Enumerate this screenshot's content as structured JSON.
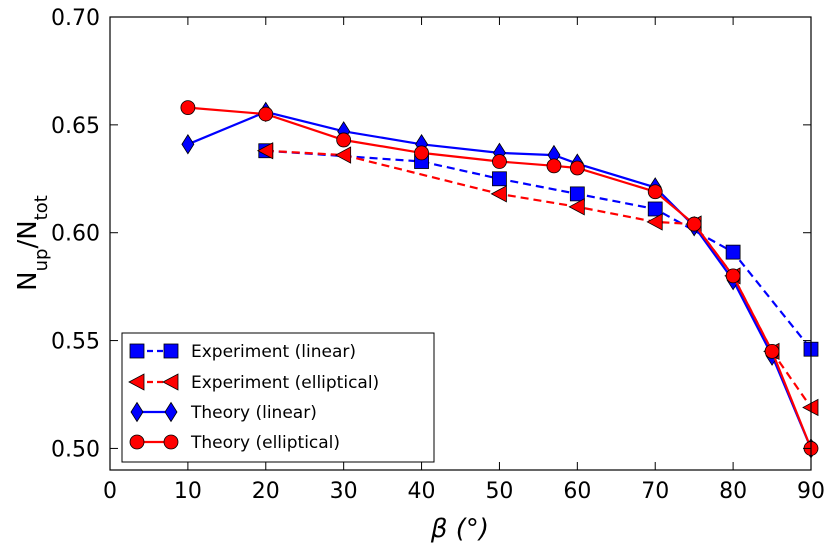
{
  "chart_data": {
    "type": "line",
    "title": "",
    "xlabel": "β (°)",
    "ylabel": "N_up/N_tot",
    "ylabel_main": "N",
    "ylabel_sub1": "up",
    "ylabel_slash": "/N",
    "ylabel_sub2": "tot",
    "xlim": [
      0,
      90
    ],
    "ylim": [
      0.49,
      0.7
    ],
    "xticks": [
      0,
      10,
      20,
      30,
      40,
      50,
      60,
      70,
      80,
      90
    ],
    "xtick_labels": [
      "0",
      "10",
      "20",
      "30",
      "40",
      "50",
      "60",
      "70",
      "80",
      "90"
    ],
    "yticks": [
      0.5,
      0.55,
      0.6,
      0.65,
      0.7
    ],
    "ytick_labels": [
      "0.50",
      "0.55",
      "0.60",
      "0.65",
      "0.70"
    ],
    "grid": false,
    "legend_position": "bottom-left",
    "series": [
      {
        "name": "Experiment (linear)",
        "color": "#0000ff",
        "line_style": "dashed",
        "marker": "square",
        "x": [
          20,
          40,
          50,
          60,
          70,
          80,
          90
        ],
        "y": [
          0.638,
          0.633,
          0.625,
          0.618,
          0.611,
          0.591,
          0.546
        ]
      },
      {
        "name": "Experiment (elliptical)",
        "color": "#ff0000",
        "line_style": "dashed",
        "marker": "triangle-left",
        "x": [
          20,
          30,
          50,
          60,
          70,
          75,
          80,
          85,
          90
        ],
        "y": [
          0.638,
          0.636,
          0.618,
          0.612,
          0.605,
          0.604,
          0.58,
          0.545,
          0.519
        ]
      },
      {
        "name": "Theory (linear)",
        "color": "#0000ff",
        "line_style": "solid",
        "marker": "diamond",
        "x": [
          10,
          20,
          30,
          40,
          50,
          57,
          60,
          70,
          75,
          80,
          85,
          90
        ],
        "y": [
          0.641,
          0.656,
          0.647,
          0.641,
          0.637,
          0.636,
          0.632,
          0.621,
          0.603,
          0.578,
          0.543,
          0.5
        ]
      },
      {
        "name": "Theory (elliptical)",
        "color": "#ff0000",
        "line_style": "solid",
        "marker": "circle",
        "x": [
          10,
          20,
          30,
          40,
          50,
          57,
          60,
          70,
          75,
          80,
          85,
          90
        ],
        "y": [
          0.658,
          0.655,
          0.643,
          0.637,
          0.633,
          0.631,
          0.63,
          0.619,
          0.604,
          0.58,
          0.545,
          0.5
        ]
      }
    ]
  }
}
